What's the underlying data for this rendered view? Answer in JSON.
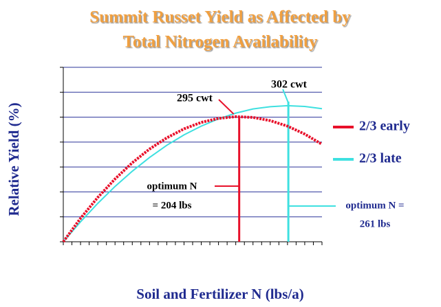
{
  "chart_data": {
    "type": "line",
    "title_lines": [
      "Summit Russet Yield as Affected by",
      "Total Nitrogen Availability"
    ],
    "ylabel": "Relative Yield (%)",
    "xlabel": "Soil and Fertilizer N (lbs/a)",
    "x": [
      0,
      20,
      40,
      60,
      80,
      100,
      120,
      140,
      160,
      180,
      200,
      220,
      240,
      260,
      280,
      300
    ],
    "series": [
      {
        "name": "2/3 early",
        "color": "#e8102a",
        "optimum": 204,
        "values": [
          30.0,
          39.4,
          47.8,
          55.2,
          61.7,
          67.2,
          71.7,
          75.3,
          77.9,
          79.5,
          80.2,
          79.9,
          78.6,
          76.4,
          73.2,
          69.1
        ]
      },
      {
        "name": "2/3 late",
        "color": "#3ee0e0",
        "optimum": 261,
        "values": [
          30.0,
          38.0,
          45.4,
          52.2,
          58.3,
          63.8,
          68.7,
          72.9,
          76.4,
          79.3,
          81.6,
          83.3,
          84.2,
          84.6,
          84.3,
          83.4
        ]
      }
    ],
    "annotations": [
      "295 cwt",
      "302 cwt",
      "optimum N",
      "= 204 lbs",
      "optimum N =",
      "261 lbs"
    ],
    "xlim": [
      0,
      300
    ],
    "xticks": [
      0,
      10,
      20,
      30,
      40,
      50,
      60,
      70,
      80,
      90,
      100,
      110,
      120,
      130,
      140,
      150,
      160,
      170,
      180,
      190,
      200,
      210,
      220,
      230,
      240,
      250,
      260,
      270,
      280,
      290,
      300
    ],
    "ylim": [
      30,
      100
    ],
    "yticks": [
      30,
      40,
      50,
      60,
      70,
      80,
      90,
      100
    ],
    "grid": true
  }
}
